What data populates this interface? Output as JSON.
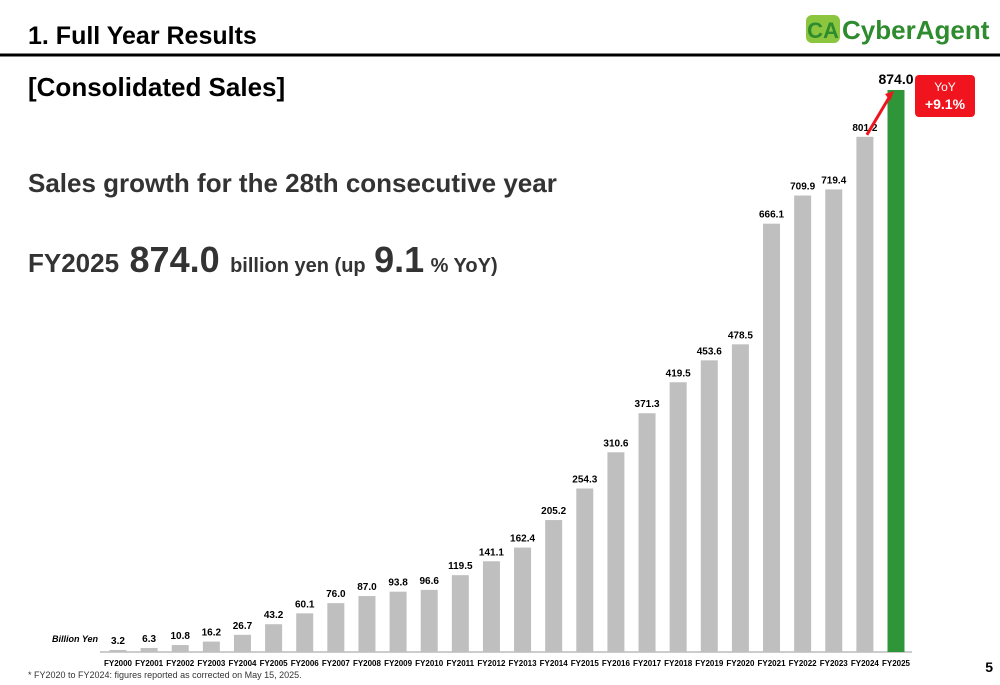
{
  "header": {
    "title": "1. Full Year Results",
    "logo_mark": "CA",
    "logo": "CyberAgent"
  },
  "slide": {
    "section": "[Consolidated Sales]",
    "lead": "Sales growth for the 28th consecutive year",
    "headline": [
      "FY2025",
      "874.0",
      "billion yen (up",
      "9.1",
      "% YoY)"
    ]
  },
  "chart_data": {
    "type": "bar",
    "unit_label": "Billion Yen",
    "categories": [
      "FY2000",
      "FY2001",
      "FY2002",
      "FY2003",
      "FY2004",
      "FY2005",
      "FY2006",
      "FY2007",
      "FY2008",
      "FY2009",
      "FY2010",
      "FY2011",
      "FY2012",
      "FY2013",
      "FY2014",
      "FY2015",
      "FY2016",
      "FY2017",
      "FY2018",
      "FY2019",
      "FY2020",
      "FY2021",
      "FY2022",
      "FY2023",
      "FY2024",
      "FY2025"
    ],
    "values": [
      3.2,
      6.3,
      10.8,
      16.2,
      26.7,
      43.2,
      60.1,
      76.0,
      87.0,
      93.8,
      96.6,
      119.5,
      141.1,
      162.4,
      205.2,
      254.3,
      310.6,
      371.3,
      419.5,
      453.6,
      478.5,
      666.1,
      709.9,
      719.4,
      801.2,
      874.0
    ],
    "value_labels": [
      "3.2",
      "6.3",
      "10.8",
      "16.2",
      "26.7",
      "43.2",
      "60.1",
      "76.0",
      "87.0",
      "93.8",
      "96.6",
      "119.5",
      "141.1",
      "162.4",
      "205.2",
      "254.3",
      "310.6",
      "371.3",
      "419.5",
      "453.6",
      "478.5",
      "666.1",
      "709.9",
      "719.4",
      "801.2",
      "874.0"
    ],
    "colors": [
      "#bfbfbf",
      "#bfbfbf",
      "#bfbfbf",
      "#bfbfbf",
      "#bfbfbf",
      "#bfbfbf",
      "#bfbfbf",
      "#bfbfbf",
      "#bfbfbf",
      "#bfbfbf",
      "#bfbfbf",
      "#bfbfbf",
      "#bfbfbf",
      "#bfbfbf",
      "#bfbfbf",
      "#bfbfbf",
      "#bfbfbf",
      "#bfbfbf",
      "#bfbfbf",
      "#bfbfbf",
      "#bfbfbf",
      "#bfbfbf",
      "#bfbfbf",
      "#bfbfbf",
      "#bfbfbf",
      "#2e9639"
    ],
    "annotation": {
      "title": "YoY",
      "text": "+9.1%"
    }
  },
  "footnote": "* FY2020 to FY2024: figures reported as corrected on May 15, 2025.",
  "page_number": "5"
}
